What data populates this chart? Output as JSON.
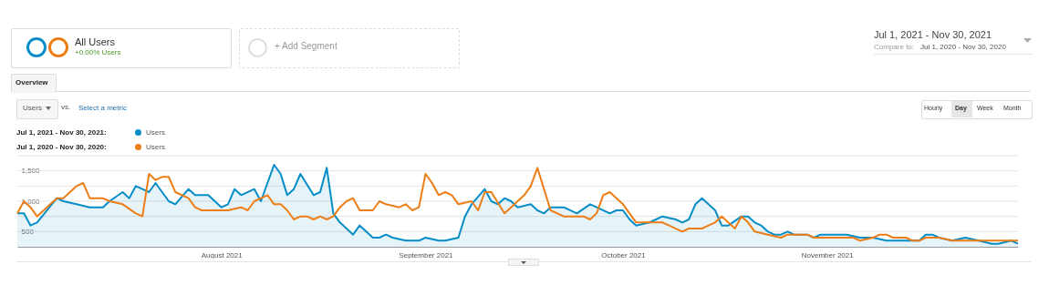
{
  "chart_data": {
    "type": "line",
    "annotations": [
      "All Users",
      "+0.00% Users",
      "+ Add Segment",
      "Jul 1, 2021 - Nov 30, 2021",
      "Compare to:",
      "Jul 1, 2020 - Nov 30, 2020",
      "Overview",
      "Users",
      "vs.",
      "Select a metric",
      "Hourly",
      "Day",
      "Week",
      "Month",
      "Jul 1, 2021 - Nov 30, 2021:",
      "Jul 1, 2020 - Nov 30, 2020:"
    ],
    "xlim": [
      "2021-07-01",
      "2021-11-30"
    ],
    "xticks": [
      {
        "value": "2021-08-01",
        "label": "August 2021"
      },
      {
        "value": "2021-09-01",
        "label": "September 2021"
      },
      {
        "value": "2021-10-01",
        "label": "October 2021"
      },
      {
        "value": "2021-11-01",
        "label": "November 2021"
      }
    ],
    "ylim": [
      250,
      1750
    ],
    "yticks": [
      500,
      {
        "value": 750,
        "label": null
      },
      {
        "value": 1000,
        "label": "1,000"
      },
      {
        "value": 1250,
        "label": null
      },
      {
        "value": 1500,
        "label": "1,500"
      },
      {
        "value": 1750,
        "label": null
      }
    ],
    "grid": "y",
    "legend": "top left",
    "series": [
      {
        "name": "Users",
        "type": "area",
        "color": "#058dc7",
        "x": [
          "2021-07-01",
          "2021-07-02",
          "2021-07-03",
          "2021-07-04",
          "2021-07-07",
          "2021-07-08",
          "2021-07-10",
          "2021-07-12",
          "2021-07-14",
          "2021-07-15",
          "2021-07-17",
          "2021-07-18",
          "2021-07-19",
          "2021-07-20",
          "2021-07-21",
          "2021-07-22",
          "2021-07-24",
          "2021-07-25",
          "2021-07-27",
          "2021-07-28",
          "2021-07-30",
          "2021-07-31",
          "2021-08-01",
          "2021-08-02",
          "2021-08-03",
          "2021-08-04",
          "2021-08-06",
          "2021-08-07",
          "2021-08-08",
          "2021-08-09",
          "2021-08-10",
          "2021-08-11",
          "2021-08-12",
          "2021-08-13",
          "2021-08-15",
          "2021-08-16",
          "2021-08-17",
          "2021-08-18",
          "2021-08-19",
          "2021-08-20",
          "2021-08-21",
          "2021-08-22",
          "2021-08-23",
          "2021-08-24",
          "2021-08-25",
          "2021-08-26",
          "2021-08-27",
          "2021-08-29",
          "2021-08-31",
          "2021-09-01",
          "2021-09-03",
          "2021-09-04",
          "2021-09-06",
          "2021-09-07",
          "2021-09-08",
          "2021-09-10",
          "2021-09-11",
          "2021-09-12",
          "2021-09-13",
          "2021-09-14",
          "2021-09-15",
          "2021-09-17",
          "2021-09-18",
          "2021-09-19",
          "2021-09-20",
          "2021-09-21",
          "2021-09-22",
          "2021-09-24",
          "2021-09-26",
          "2021-09-27",
          "2021-09-29",
          "2021-09-30",
          "2021-10-01",
          "2021-10-02",
          "2021-10-03",
          "2021-10-05",
          "2021-10-06",
          "2021-10-07",
          "2021-10-09",
          "2021-10-10",
          "2021-10-11",
          "2021-10-12",
          "2021-10-13",
          "2021-10-15",
          "2021-10-16",
          "2021-10-17",
          "2021-10-19",
          "2021-10-20",
          "2021-10-21",
          "2021-10-22",
          "2021-10-23",
          "2021-10-24",
          "2021-10-25",
          "2021-10-26",
          "2021-10-27",
          "2021-10-29",
          "2021-10-30",
          "2021-10-31",
          "2021-11-02",
          "2021-11-03",
          "2021-11-04",
          "2021-11-06",
          "2021-11-08",
          "2021-11-10",
          "2021-11-11",
          "2021-11-14",
          "2021-11-15",
          "2021-11-16",
          "2021-11-17",
          "2021-11-18",
          "2021-11-20",
          "2021-11-22",
          "2021-11-24",
          "2021-11-26",
          "2021-11-27",
          "2021-11-29",
          "2021-11-30"
        ],
        "values": [
          800,
          800,
          600,
          650,
          1050,
          1000,
          950,
          900,
          900,
          1000,
          1150,
          1050,
          1250,
          1200,
          1150,
          1300,
          1000,
          950,
          1200,
          1100,
          1100,
          1000,
          900,
          950,
          1200,
          1100,
          1200,
          1000,
          1300,
          1600,
          1450,
          1100,
          1200,
          1450,
          1100,
          1150,
          1550,
          800,
          650,
          550,
          450,
          600,
          500,
          400,
          400,
          450,
          400,
          350,
          350,
          400,
          350,
          350,
          400,
          750,
          950,
          1200,
          1000,
          950,
          1050,
          1000,
          900,
          950,
          850,
          800,
          900,
          900,
          900,
          800,
          950,
          900,
          800,
          850,
          850,
          700,
          600,
          650,
          700,
          750,
          700,
          650,
          700,
          950,
          1050,
          850,
          600,
          600,
          750,
          750,
          650,
          600,
          500,
          450,
          450,
          500,
          450,
          450,
          400,
          450,
          450,
          450,
          450,
          400,
          400,
          350,
          350,
          350,
          350,
          450,
          450,
          400,
          350,
          400,
          350,
          300,
          300,
          350,
          300
        ]
      },
      {
        "name": "Users",
        "type": "line",
        "color": "#ed7e17",
        "x": [
          "2021-07-01",
          "2021-07-02",
          "2021-07-03",
          "2021-07-04",
          "2021-07-06",
          "2021-07-07",
          "2021-07-08",
          "2021-07-09",
          "2021-07-10",
          "2021-07-11",
          "2021-07-12",
          "2021-07-13",
          "2021-07-14",
          "2021-07-15",
          "2021-07-17",
          "2021-07-19",
          "2021-07-20",
          "2021-07-21",
          "2021-07-22",
          "2021-07-23",
          "2021-07-24",
          "2021-07-25",
          "2021-07-27",
          "2021-07-28",
          "2021-07-29",
          "2021-07-30",
          "2021-07-31",
          "2021-08-01",
          "2021-08-02",
          "2021-08-04",
          "2021-08-05",
          "2021-08-06",
          "2021-08-08",
          "2021-08-09",
          "2021-08-10",
          "2021-08-11",
          "2021-08-12",
          "2021-08-13",
          "2021-08-14",
          "2021-08-15",
          "2021-08-16",
          "2021-08-17",
          "2021-08-18",
          "2021-08-19",
          "2021-08-20",
          "2021-08-21",
          "2021-08-22",
          "2021-08-23",
          "2021-08-24",
          "2021-08-25",
          "2021-08-26",
          "2021-08-28",
          "2021-08-29",
          "2021-08-30",
          "2021-08-31",
          "2021-09-01",
          "2021-09-02",
          "2021-09-03",
          "2021-09-04",
          "2021-09-05",
          "2021-09-06",
          "2021-09-08",
          "2021-09-09",
          "2021-09-10",
          "2021-09-11",
          "2021-09-13",
          "2021-09-14",
          "2021-09-15",
          "2021-09-16",
          "2021-09-17",
          "2021-09-18",
          "2021-09-20",
          "2021-09-22",
          "2021-09-24",
          "2021-09-25",
          "2021-09-26",
          "2021-09-27",
          "2021-09-28",
          "2021-09-29",
          "2021-09-30",
          "2021-10-01",
          "2021-10-03",
          "2021-10-05",
          "2021-10-07",
          "2021-10-08",
          "2021-10-10",
          "2021-10-11",
          "2021-10-13",
          "2021-10-14",
          "2021-10-15",
          "2021-10-16",
          "2021-10-17",
          "2021-10-18",
          "2021-10-19",
          "2021-10-20",
          "2021-10-21",
          "2021-10-23",
          "2021-10-25",
          "2021-10-26",
          "2021-10-28",
          "2021-10-29",
          "2021-10-30",
          "2021-10-31",
          "2021-11-02",
          "2021-11-05",
          "2021-11-06",
          "2021-11-08",
          "2021-11-09",
          "2021-11-10",
          "2021-11-11",
          "2021-11-13",
          "2021-11-14",
          "2021-11-15",
          "2021-11-16",
          "2021-11-18",
          "2021-11-20",
          "2021-11-21",
          "2021-11-24",
          "2021-11-26",
          "2021-11-27",
          "2021-11-29",
          "2021-11-30"
        ],
        "values": [
          800,
          1000,
          900,
          750,
          950,
          1050,
          1050,
          1150,
          1250,
          1300,
          1050,
          1050,
          1050,
          1000,
          950,
          800,
          750,
          1450,
          1350,
          1400,
          1400,
          1150,
          1050,
          900,
          850,
          850,
          850,
          850,
          850,
          900,
          850,
          1000,
          1100,
          950,
          950,
          850,
          700,
          750,
          750,
          700,
          750,
          700,
          750,
          900,
          1000,
          1050,
          850,
          850,
          850,
          1000,
          950,
          900,
          950,
          850,
          900,
          1450,
          1300,
          1100,
          1150,
          1100,
          950,
          1000,
          850,
          1150,
          1150,
          800,
          900,
          1000,
          1100,
          1250,
          1550,
          850,
          750,
          750,
          750,
          700,
          800,
          1100,
          1150,
          1050,
          950,
          650,
          650,
          650,
          600,
          500,
          550,
          550,
          600,
          650,
          750,
          650,
          550,
          750,
          650,
          500,
          450,
          400,
          450,
          450,
          450,
          400,
          400,
          400,
          400,
          350,
          400,
          450,
          450,
          400,
          400,
          350,
          350,
          400,
          400,
          350,
          350,
          350,
          350,
          350,
          350,
          350
        ]
      }
    ]
  }
}
